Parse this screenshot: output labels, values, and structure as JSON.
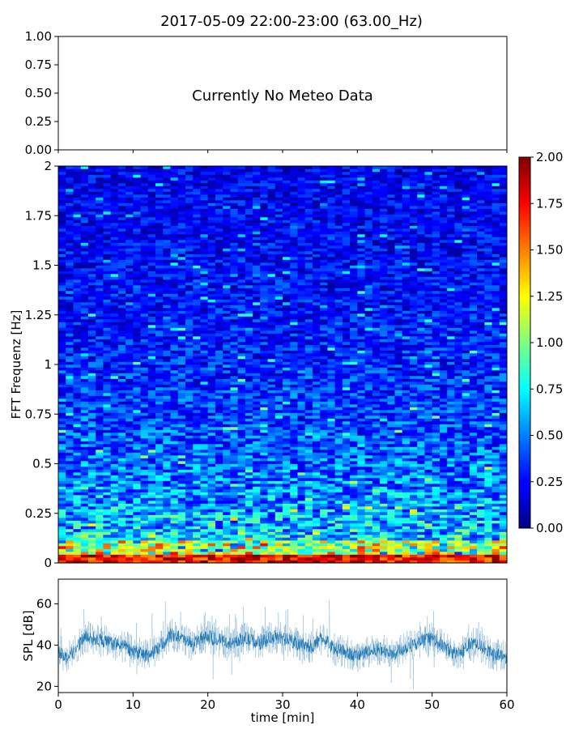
{
  "chart_data": [
    {
      "type": "text",
      "panel": "meteo",
      "title": "2017-05-09 22:00-23:00 (63.00_Hz)",
      "message": "Currently No Meteo Data",
      "ylim": [
        0,
        1
      ],
      "yticks": [
        "0.00",
        "0.25",
        "0.50",
        "0.75",
        "1.00"
      ],
      "xlim": [
        0,
        60
      ]
    },
    {
      "type": "heatmap",
      "panel": "spectrogram",
      "ylabel": "FFT Frequenz [Hz]",
      "xlim": [
        0,
        60
      ],
      "ylim": [
        0,
        2
      ],
      "yticks": [
        "0",
        "0.25",
        "0.5",
        "0.75",
        "1",
        "1.25",
        "1.5",
        "1.75",
        "2"
      ],
      "colormap": "jet",
      "colorbar": {
        "range": [
          0,
          2
        ],
        "ticks": [
          "0.00",
          "0.25",
          "0.50",
          "0.75",
          "1.00",
          "1.25",
          "1.50",
          "1.75",
          "2.00"
        ]
      },
      "grid": false
    },
    {
      "type": "line",
      "panel": "spl",
      "xlabel": "time [min]",
      "ylabel": "SPL [dB]",
      "xlim": [
        0,
        60
      ],
      "ylim": [
        17,
        72
      ],
      "xticks": [
        "0",
        "10",
        "20",
        "30",
        "40",
        "50",
        "60"
      ],
      "yticks": [
        "20",
        "40",
        "60"
      ],
      "color": "#1f77b4",
      "series": [
        {
          "x": [
            0,
            1,
            2,
            3,
            4,
            5,
            6,
            7,
            8,
            9,
            10,
            11,
            12,
            13,
            14,
            15,
            16,
            17,
            18,
            19,
            20,
            21,
            22,
            23,
            24,
            25,
            26,
            27,
            28,
            29,
            30,
            31,
            32,
            33,
            34,
            35,
            36,
            37,
            38,
            39,
            40,
            41,
            42,
            43,
            44,
            45,
            46,
            47,
            48,
            49,
            50,
            51,
            52,
            53,
            54,
            55,
            56,
            57,
            58,
            59,
            60
          ],
          "y": [
            38,
            34,
            36,
            42,
            44,
            43,
            42,
            41,
            40,
            39,
            37,
            36,
            35,
            37,
            41,
            45,
            44,
            42,
            40,
            43,
            44,
            43,
            42,
            41,
            42,
            43,
            42,
            41,
            43,
            44,
            43,
            42,
            41,
            40,
            39,
            43,
            42,
            38,
            37,
            36,
            35,
            36,
            37,
            38,
            37,
            36,
            38,
            40,
            41,
            42,
            43,
            41,
            38,
            36,
            37,
            40,
            41,
            38,
            36,
            35,
            34
          ]
        }
      ]
    }
  ]
}
